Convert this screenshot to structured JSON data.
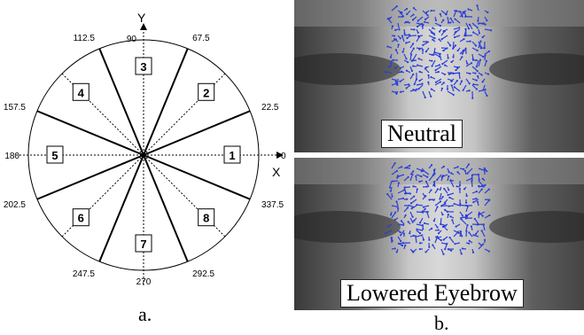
{
  "figure": {
    "panel_a_label": "a.",
    "panel_b_label": "b.",
    "diagram": {
      "axis_x_label": "X",
      "axis_y_label": "Y",
      "angle_labels": [
        "0",
        "22.5",
        "67.5",
        "90",
        "112.5",
        "157.5",
        "180",
        "202.5",
        "247.5",
        "270",
        "292.5",
        "337.5"
      ],
      "bin_numbers": [
        "1",
        "2",
        "3",
        "4",
        "5",
        "6",
        "7",
        "8"
      ]
    },
    "images": [
      {
        "caption": "Neutral"
      },
      {
        "caption": "Lowered Eyebrow"
      }
    ],
    "colors": {
      "flow_vectors": "#2a3fd8",
      "face_tone": "#8c8c8c"
    }
  }
}
